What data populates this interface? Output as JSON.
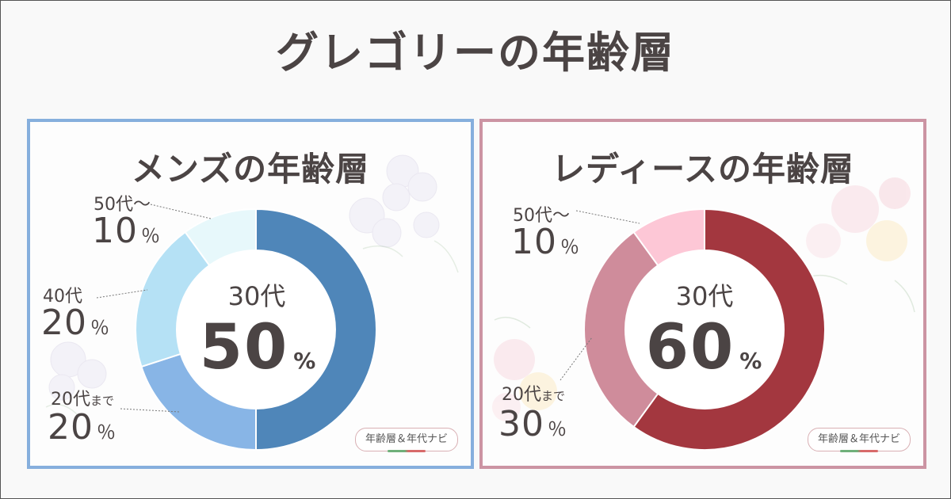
{
  "title": "グレゴリーの年齢層",
  "credit_label": "年齢層＆年代ナビ",
  "colors": {
    "men_border": "#86afdd",
    "women_border": "#cc94a3"
  },
  "chart_data": [
    {
      "type": "pie",
      "variant": "donut",
      "title": "メンズの年齢層",
      "categories": [
        "30代",
        "20代まで",
        "40代",
        "50代～"
      ],
      "values": [
        50,
        20,
        20,
        10
      ],
      "unit": "%",
      "colors": [
        "#4f86b9",
        "#88b5e6",
        "#b5e1f5",
        "#e7f8fb"
      ],
      "center": {
        "name": "30代",
        "value": "50"
      },
      "labels": [
        {
          "name": "50代～",
          "value": "10",
          "unit": "％"
        },
        {
          "name": "40代",
          "value": "20",
          "unit": "％"
        },
        {
          "name_main": "20代",
          "name_small": "まで",
          "value": "20",
          "unit": "％"
        }
      ]
    },
    {
      "type": "pie",
      "variant": "donut",
      "title": "レディースの年齢層",
      "categories": [
        "30代",
        "20代まで",
        "50代～"
      ],
      "values": [
        60,
        30,
        10
      ],
      "unit": "%",
      "colors": [
        "#a3373f",
        "#cf8c9b",
        "#fdc7d6"
      ],
      "center": {
        "name": "30代",
        "value": "60"
      },
      "labels": [
        {
          "name": "50代～",
          "value": "10",
          "unit": "％"
        },
        {
          "name_main": "20代",
          "name_small": "まで",
          "value": "30",
          "unit": "％"
        }
      ]
    }
  ]
}
